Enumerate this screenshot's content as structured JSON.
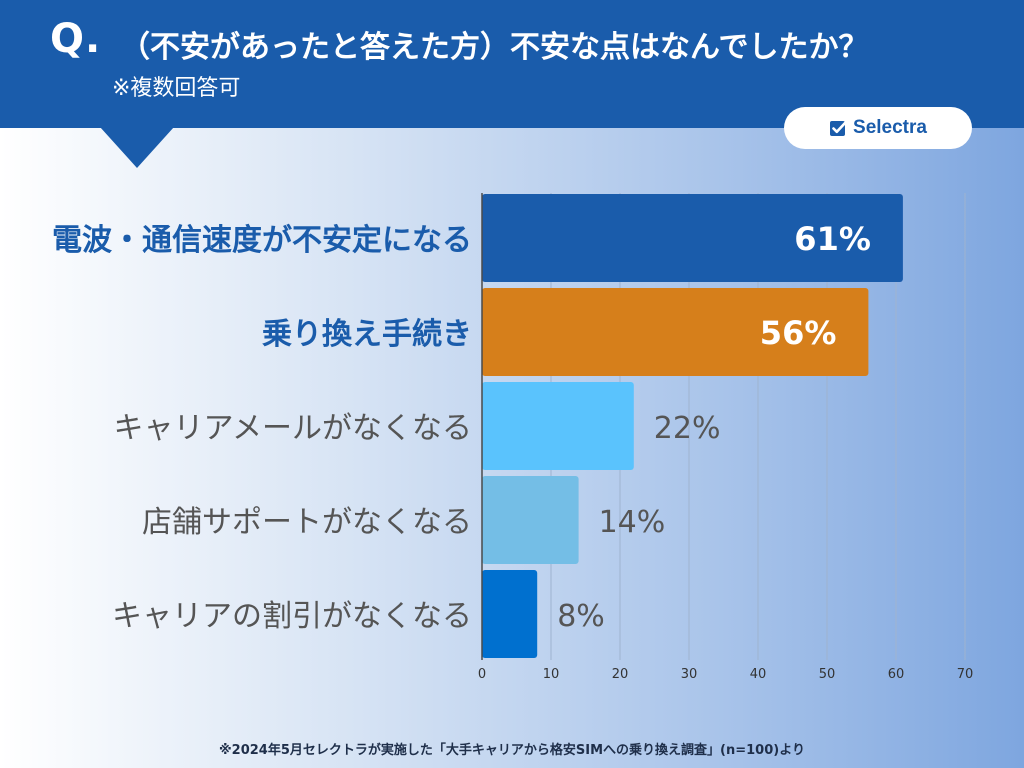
{
  "header": {
    "q_mark": "Q.",
    "title": "（不安があったと答えた方）不安な点はなんでしたか？",
    "note": "※複数回答可"
  },
  "logo": {
    "text": "Selectra",
    "icon": "checkbox-check-icon"
  },
  "colors": {
    "header": "#1a5cab",
    "bar_colors": [
      "#1a5cab",
      "#d67f1b",
      "#5ac3fd",
      "#74bee6",
      "#0070cf"
    ],
    "highlight_label": "#1a5cab",
    "normal_label": "#555555"
  },
  "chart_data": {
    "type": "bar",
    "orientation": "horizontal",
    "categories": [
      "電波・通信速度が不安定になる",
      "乗り換え手続き",
      "キャリアメールがなくなる",
      "店舗サポートがなくなる",
      "キャリアの割引がなくなる"
    ],
    "values": [
      61,
      56,
      22,
      14,
      8
    ],
    "value_labels": [
      "61%",
      "56%",
      "22%",
      "14%",
      "8%"
    ],
    "highlighted": [
      true,
      true,
      false,
      false,
      false
    ],
    "xlim": [
      0,
      70
    ],
    "xticks": [
      0,
      10,
      20,
      30,
      40,
      50,
      60,
      70
    ],
    "grid": true,
    "unit": "%"
  },
  "footnote": "※2024年5月セレクトラが実施した「大手キャリアから格安SIMへの乗り換え調査」(n=100)より"
}
